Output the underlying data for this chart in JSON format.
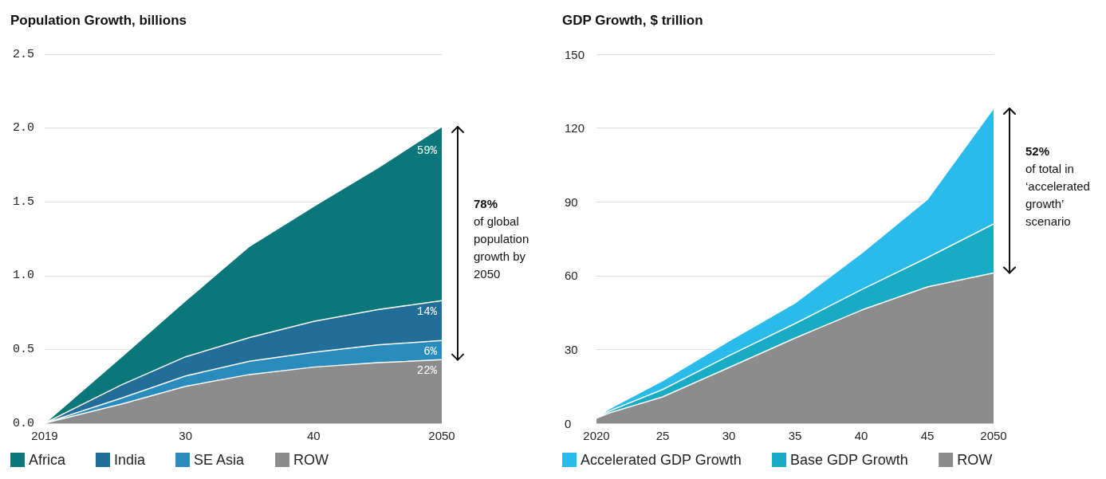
{
  "chart_data": [
    {
      "type": "area",
      "title": "Population Growth, billions",
      "stacked": true,
      "x": [
        2019,
        2025,
        2030,
        2035,
        2040,
        2045,
        2050
      ],
      "xlim": [
        2019,
        2050
      ],
      "xticks": [
        2019,
        {
          "value": 2030,
          "label": "30"
        },
        {
          "value": 2040,
          "label": "40"
        },
        2050
      ],
      "ylim": [
        0,
        2.5
      ],
      "yticks": [
        {
          "value": 0,
          "label": "0.0"
        },
        0.5,
        {
          "value": 1,
          "label": "1.0"
        },
        1.5,
        {
          "value": 2,
          "label": "2.0"
        },
        2.5
      ],
      "grid": "y",
      "legend": "bottom",
      "annotations": [
        "78% of global population growth by 2050",
        "59%",
        "14%",
        "6%",
        "22%"
      ],
      "series": [
        {
          "name": "ROW",
          "color": "#8c8c8c",
          "values": [
            0,
            0.13,
            0.25,
            0.33,
            0.38,
            0.41,
            0.43
          ]
        },
        {
          "name": "SE Asia",
          "color": "#2a8cbd",
          "values": [
            0,
            0.04,
            0.07,
            0.09,
            0.1,
            0.12,
            0.13
          ]
        },
        {
          "name": "India",
          "color": "#236e98",
          "values": [
            0,
            0.09,
            0.13,
            0.16,
            0.21,
            0.24,
            0.27
          ]
        },
        {
          "name": "Africa",
          "color": "#0b777b",
          "values": [
            0,
            0.19,
            0.38,
            0.62,
            0.78,
            0.96,
            1.18
          ]
        }
      ]
    },
    {
      "type": "area",
      "title": "GDP Growth, $ trillion",
      "stacked": true,
      "x": [
        2020,
        2021,
        2025,
        2030,
        2035,
        2040,
        2045,
        2050
      ],
      "xlim": [
        2020,
        2050
      ],
      "xticks": [
        2020,
        {
          "value": 2025,
          "label": "25"
        },
        {
          "value": 2030,
          "label": "30"
        },
        {
          "value": 2035,
          "label": "35"
        },
        {
          "value": 2040,
          "label": "40"
        },
        {
          "value": 2045,
          "label": "45"
        },
        2050
      ],
      "ylim": [
        0,
        150
      ],
      "yticks": [
        0,
        30,
        60,
        90,
        120,
        150
      ],
      "grid": "y",
      "legend": "bottom",
      "annotations": [
        "52% of total in ‘accelerated growth’ scenario"
      ],
      "series": [
        {
          "name": "ROW",
          "color": "#8c8c8c",
          "values": [
            2,
            4.2,
            10.7,
            22.6,
            34.6,
            45.9,
            55.4,
            61.1
          ]
        },
        {
          "name": "Base GDP Growth",
          "color": "#1aabc4",
          "values": [
            0,
            0.8,
            3,
            4.8,
            5.9,
            8.3,
            11.9,
            19.9
          ]
        },
        {
          "name": "Accelerated GDP Growth",
          "color": "#2abbeb",
          "values": [
            0,
            1,
            3.6,
            6,
            8.4,
            14.8,
            23.7,
            47
          ]
        }
      ]
    }
  ]
}
